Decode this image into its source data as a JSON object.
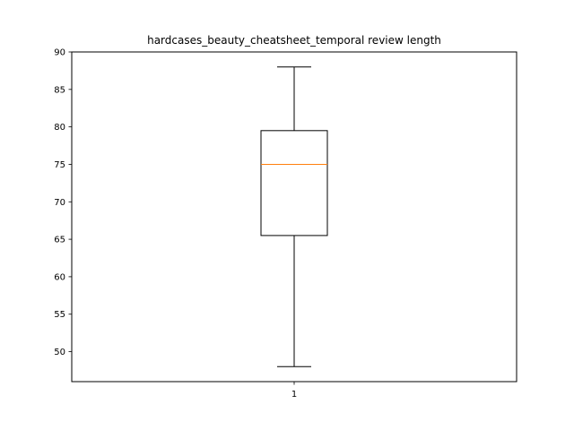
{
  "chart_data": {
    "type": "box",
    "title": "hardcases_beauty_cheatsheet_temporal review length",
    "xlabel": "",
    "ylabel": "",
    "categories": [
      "1"
    ],
    "ylim": [
      46,
      90
    ],
    "yticks": [
      50,
      55,
      60,
      65,
      70,
      75,
      80,
      85,
      90
    ],
    "grid": false,
    "boxes": [
      {
        "category": "1",
        "whisker_low": 48,
        "q1": 65.5,
        "median": 75,
        "q3": 79.5,
        "whisker_high": 88
      }
    ],
    "colors": {
      "box": "#000000",
      "median": "#ff7f0e",
      "frame": "#000000"
    }
  }
}
